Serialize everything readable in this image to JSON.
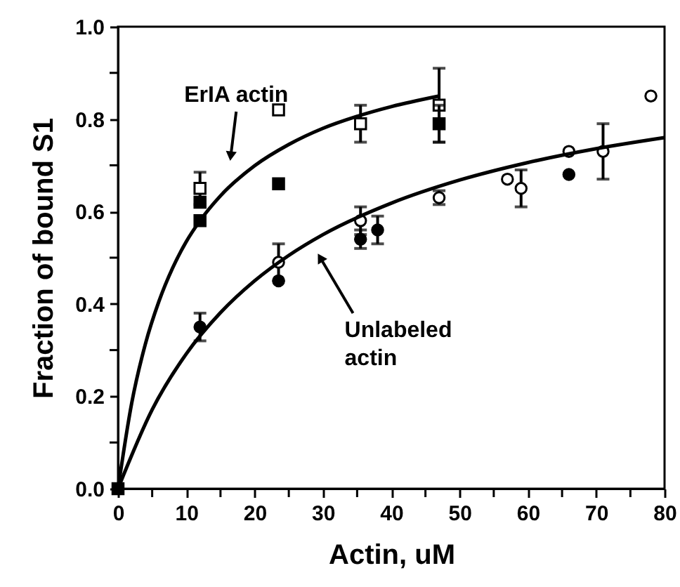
{
  "chart_data": {
    "type": "scatter",
    "xlabel": "Actin, uM",
    "ylabel": "Fraction of bound S1",
    "xlim": [
      0,
      80
    ],
    "ylim": [
      0,
      1
    ],
    "xticks": [
      0,
      {
        "value": 5,
        "label": null
      },
      10,
      {
        "value": 15,
        "label": null
      },
      20,
      {
        "value": 25,
        "label": null
      },
      30,
      {
        "value": 35,
        "label": null
      },
      40,
      {
        "value": 45,
        "label": null
      },
      50,
      {
        "value": 55,
        "label": null
      },
      60,
      {
        "value": 65,
        "label": null
      },
      70,
      {
        "value": 75,
        "label": null
      },
      80
    ],
    "yticks": [
      {
        "value": 0,
        "label": "0.0"
      },
      {
        "value": 0.1,
        "label": null
      },
      0.2,
      {
        "value": 0.3,
        "label": null
      },
      0.4,
      {
        "value": 0.5,
        "label": null
      },
      0.6,
      {
        "value": 0.7,
        "label": null
      },
      0.8,
      {
        "value": 0.9,
        "label": null
      },
      {
        "value": 1,
        "label": "1.0"
      }
    ],
    "grid": false,
    "series": [
      {
        "marker": "square",
        "color": "#ffffff",
        "x": [
          12,
          23.5,
          35.5,
          47
        ],
        "values": [
          0.65,
          0.82,
          0.79,
          0.83
        ],
        "errors": [
          0.035,
          null,
          0.04,
          0.08
        ]
      },
      {
        "marker": "square",
        "color": "#000000",
        "x": [
          0,
          12,
          12,
          23.5,
          47
        ],
        "values": [
          0,
          0.62,
          0.58,
          0.66,
          0.79
        ],
        "errors": [
          null,
          null,
          null,
          null,
          0.04
        ]
      },
      {
        "marker": "circle",
        "color": "#ffffff",
        "x": [
          23.5,
          35.5,
          47,
          57,
          59,
          66,
          71,
          78
        ],
        "values": [
          0.49,
          0.58,
          0.63,
          0.67,
          0.65,
          0.73,
          0.73,
          0.85
        ],
        "errors": [
          0.04,
          0.03,
          0.015,
          null,
          0.04,
          null,
          0.06,
          null
        ]
      },
      {
        "marker": "circle",
        "color": "#000000",
        "x": [
          12,
          23.5,
          35.5,
          38,
          66
        ],
        "values": [
          0.35,
          0.45,
          0.54,
          0.56,
          0.68
        ],
        "errors": [
          0.03,
          null,
          0.02,
          0.03,
          null
        ]
      },
      {
        "type": "line",
        "marker": "none",
        "color": "#000000",
        "x": [
          0,
          2,
          4,
          6,
          8,
          10,
          12,
          15,
          20,
          25,
          30,
          35,
          40,
          47
        ],
        "values": [
          0,
          0.185,
          0.313,
          0.406,
          0.478,
          0.535,
          0.58,
          0.634,
          0.699,
          0.745,
          0.78,
          0.806,
          0.827,
          0.85
        ]
      },
      {
        "type": "line",
        "marker": "none",
        "color": "#000000",
        "x": [
          0,
          5,
          10,
          15,
          20,
          25,
          30,
          40,
          50,
          60,
          70,
          80
        ],
        "values": [
          0,
          0.171,
          0.292,
          0.381,
          0.45,
          0.505,
          0.55,
          0.618,
          0.668,
          0.706,
          0.736,
          0.76
        ]
      }
    ],
    "annotations": [
      {
        "text": "ErIA actin",
        "x": 16.5,
        "y": 0.72
      },
      {
        "text": "Unlabeled\n actin",
        "x": 29.6,
        "y": 0.5
      }
    ]
  }
}
